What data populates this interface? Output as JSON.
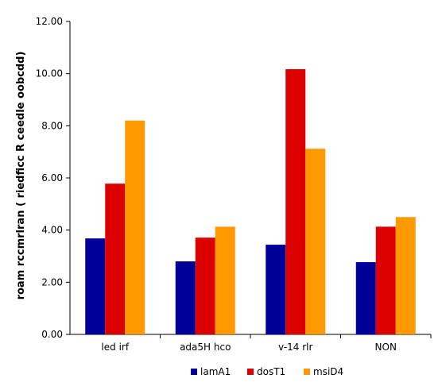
{
  "chart_data": {
    "type": "bar",
    "title": "",
    "xlabel": "",
    "ylabel": "roam rccmrlran ( riedficc R ceedle oobcdd)",
    "categories": [
      "led irf",
      "ada5H hco",
      "v-14 rlr",
      "NON"
    ],
    "series": [
      {
        "name": "lamA1",
        "color": "#000099",
        "values": [
          3.68,
          2.8,
          3.44,
          2.77
        ]
      },
      {
        "name": "dosT1",
        "color": "#dd0000",
        "values": [
          5.78,
          3.71,
          10.17,
          4.13
        ]
      },
      {
        "name": "msiD4",
        "color": "#ff9900",
        "values": [
          8.2,
          4.13,
          7.12,
          4.5
        ]
      }
    ],
    "ylim": [
      0,
      12
    ],
    "yticks": [
      "0.00",
      "2.00",
      "4.00",
      "6.00",
      "8.00",
      "10.00",
      "12.00"
    ],
    "grid": false,
    "legend_position": "bottom"
  }
}
